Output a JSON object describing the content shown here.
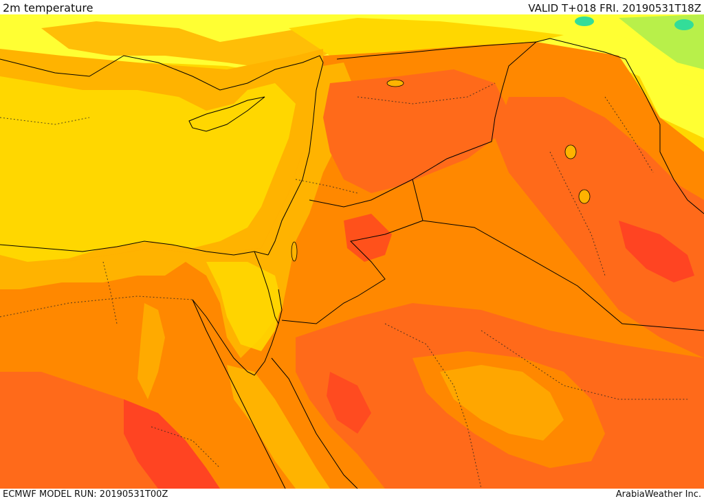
{
  "header": {
    "title": "2m temperature",
    "valid_time": "VALID T+018 FRI. 20190531T18Z"
  },
  "footer": {
    "model_run": "ECMWF MODEL RUN: 20190531T00Z",
    "credit": "ArabiaWeather Inc."
  },
  "map": {
    "variable": "2m temperature",
    "colors": {
      "cool_green": "#7fe07f",
      "cyan_spot": "#33dd99",
      "yellow_light": "#ffff33",
      "yellow": "#ffd700",
      "orange_light": "#ffb300",
      "orange": "#ff8800",
      "orange_dark": "#ff6a1a",
      "red": "#ff4422",
      "border_line": "#000000"
    }
  }
}
